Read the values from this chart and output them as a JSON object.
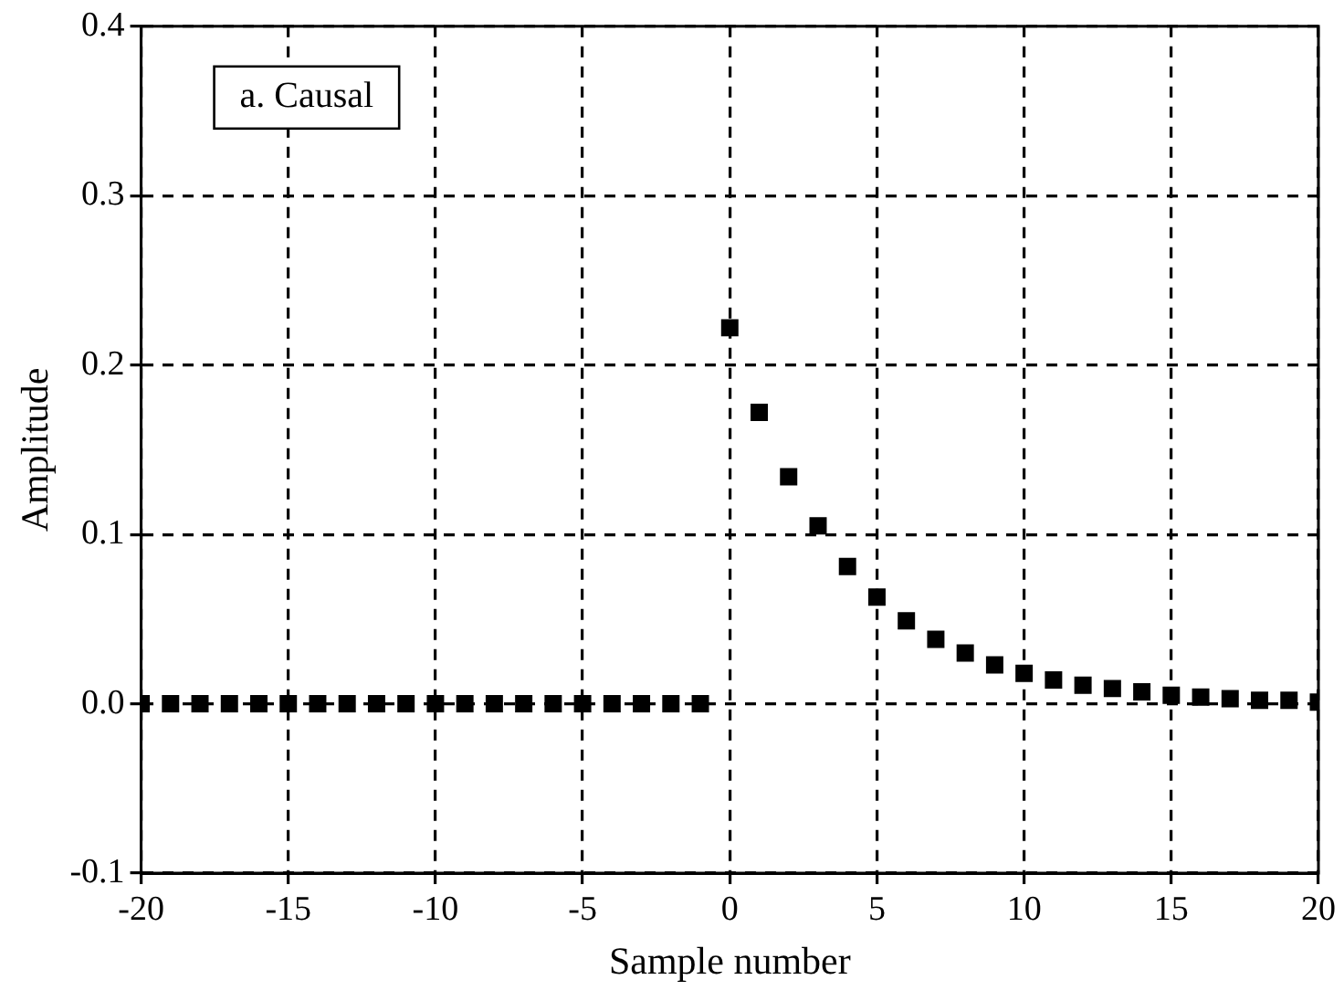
{
  "chart_data": {
    "type": "scatter",
    "xlabel": "Sample number",
    "ylabel": "Amplitude",
    "annotations": [
      "a. Causal"
    ],
    "x": [
      -20,
      -19,
      -18,
      -17,
      -16,
      -15,
      -14,
      -13,
      -12,
      -11,
      -10,
      -9,
      -8,
      -7,
      -6,
      -5,
      -4,
      -3,
      -2,
      -1,
      0,
      1,
      2,
      3,
      4,
      5,
      6,
      7,
      8,
      9,
      10,
      11,
      12,
      13,
      14,
      15,
      16,
      17,
      18,
      19,
      20
    ],
    "values": [
      0,
      0,
      0,
      0,
      0,
      0,
      0,
      0,
      0,
      0,
      0,
      0,
      0,
      0,
      0,
      0,
      0,
      0,
      0,
      0,
      0.222,
      0.172,
      0.134,
      0.105,
      0.081,
      0.063,
      0.049,
      0.038,
      0.03,
      0.023,
      0.018,
      0.014,
      0.011,
      0.009,
      0.007,
      0.005,
      0.004,
      0.003,
      0.002,
      0.002,
      0.001
    ],
    "color": "#000000",
    "marker": "square",
    "grid": true,
    "xlim": [
      -20,
      20
    ],
    "xticks": [
      -20,
      -15,
      -10,
      -5,
      0,
      5,
      10,
      15,
      20
    ],
    "ylim": [
      -0.1,
      0.4
    ],
    "yticks": [
      -0.1,
      {
        "value": 0,
        "label": "0.0"
      },
      0.1,
      0.2,
      0.3,
      0.4
    ]
  }
}
